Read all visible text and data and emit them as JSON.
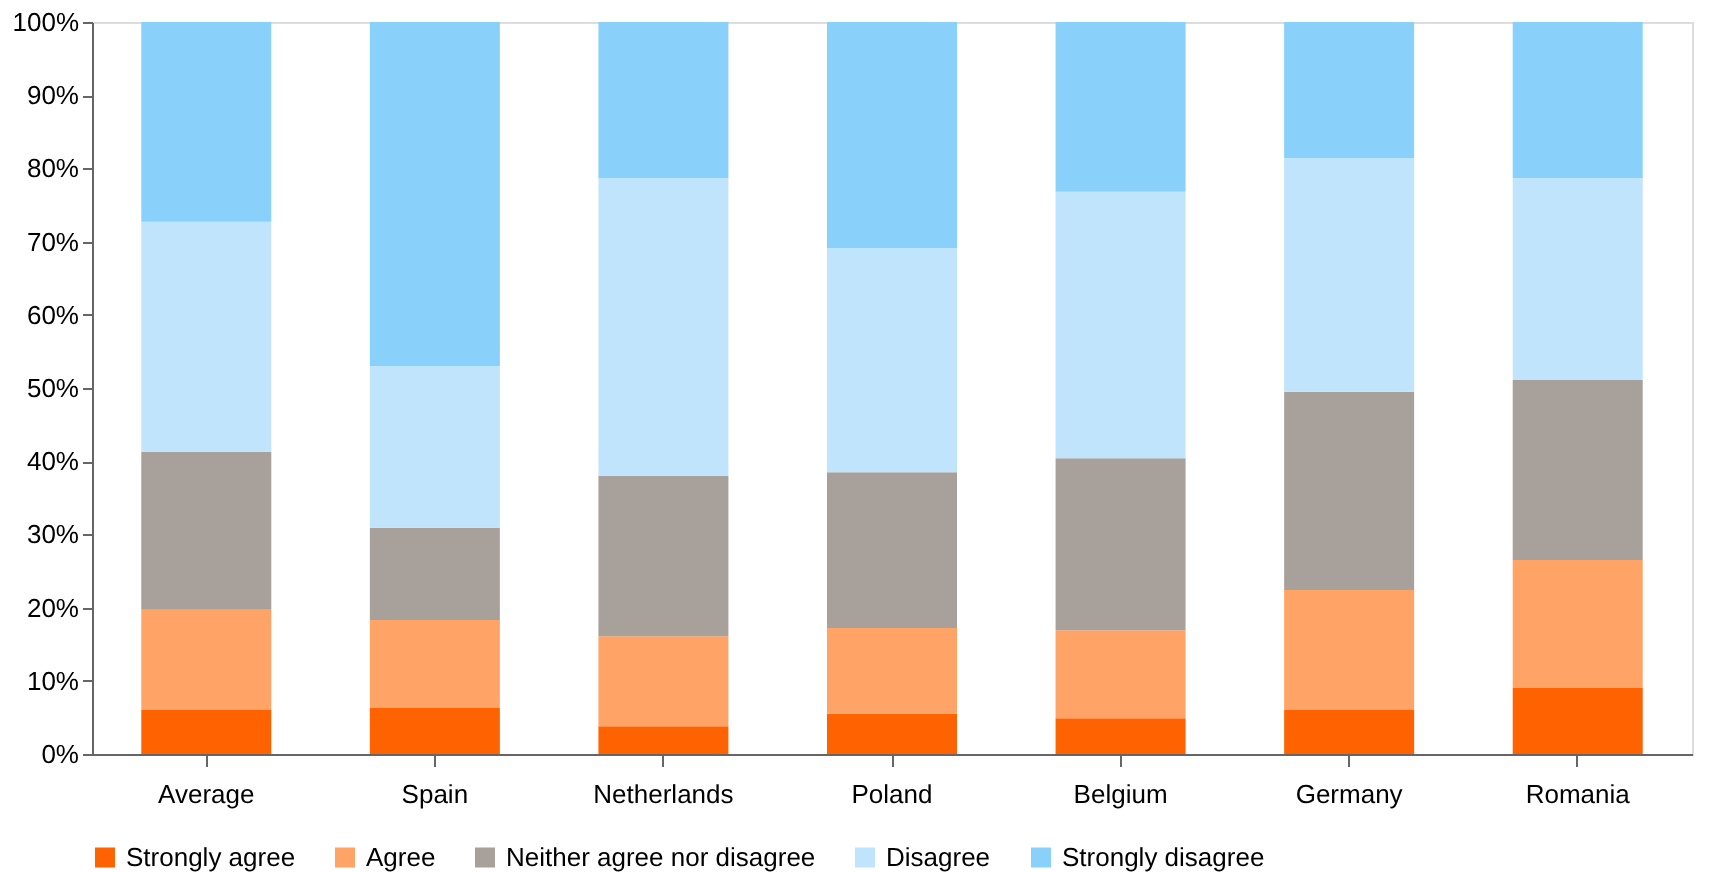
{
  "chart_data": {
    "type": "bar",
    "stacked": true,
    "categories": [
      "Average",
      "Spain",
      "Netherlands",
      "Poland",
      "Belgium",
      "Germany",
      "Romania"
    ],
    "series": [
      {
        "name": "Strongly agree",
        "color": "#ff6200",
        "values": [
          6.0,
          6.3,
          3.8,
          5.5,
          4.9,
          6.0,
          9.0
        ]
      },
      {
        "name": "Agree",
        "color": "#ffa366",
        "values": [
          13.7,
          12.0,
          12.3,
          11.7,
          12.0,
          16.4,
          17.5
        ]
      },
      {
        "name": "Neither agree nor disagree",
        "color": "#a8a09a",
        "values": [
          21.6,
          12.6,
          21.9,
          21.3,
          23.5,
          27.1,
          24.6
        ]
      },
      {
        "name": "Disagree",
        "color": "#c0e4fc",
        "values": [
          31.4,
          22.1,
          40.7,
          30.6,
          36.4,
          31.9,
          27.6
        ]
      },
      {
        "name": "Strongly disagree",
        "color": "#89d1fa",
        "values": [
          27.3,
          47.0,
          21.3,
          30.9,
          23.2,
          18.6,
          21.3
        ]
      }
    ],
    "ylim": [
      0,
      100
    ],
    "yticks": [
      {
        "value": 0,
        "label": "0%"
      },
      {
        "value": 10,
        "label": "10%"
      },
      {
        "value": 20,
        "label": "20%"
      },
      {
        "value": 30,
        "label": "30%"
      },
      {
        "value": 40,
        "label": "40%"
      },
      {
        "value": 50,
        "label": "50%"
      },
      {
        "value": 60,
        "label": "60%"
      },
      {
        "value": 70,
        "label": "70%"
      },
      {
        "value": 80,
        "label": "80%"
      },
      {
        "value": 90,
        "label": "90%"
      },
      {
        "value": 100,
        "label": "100%"
      }
    ],
    "grid": false,
    "legend": "bottom"
  }
}
